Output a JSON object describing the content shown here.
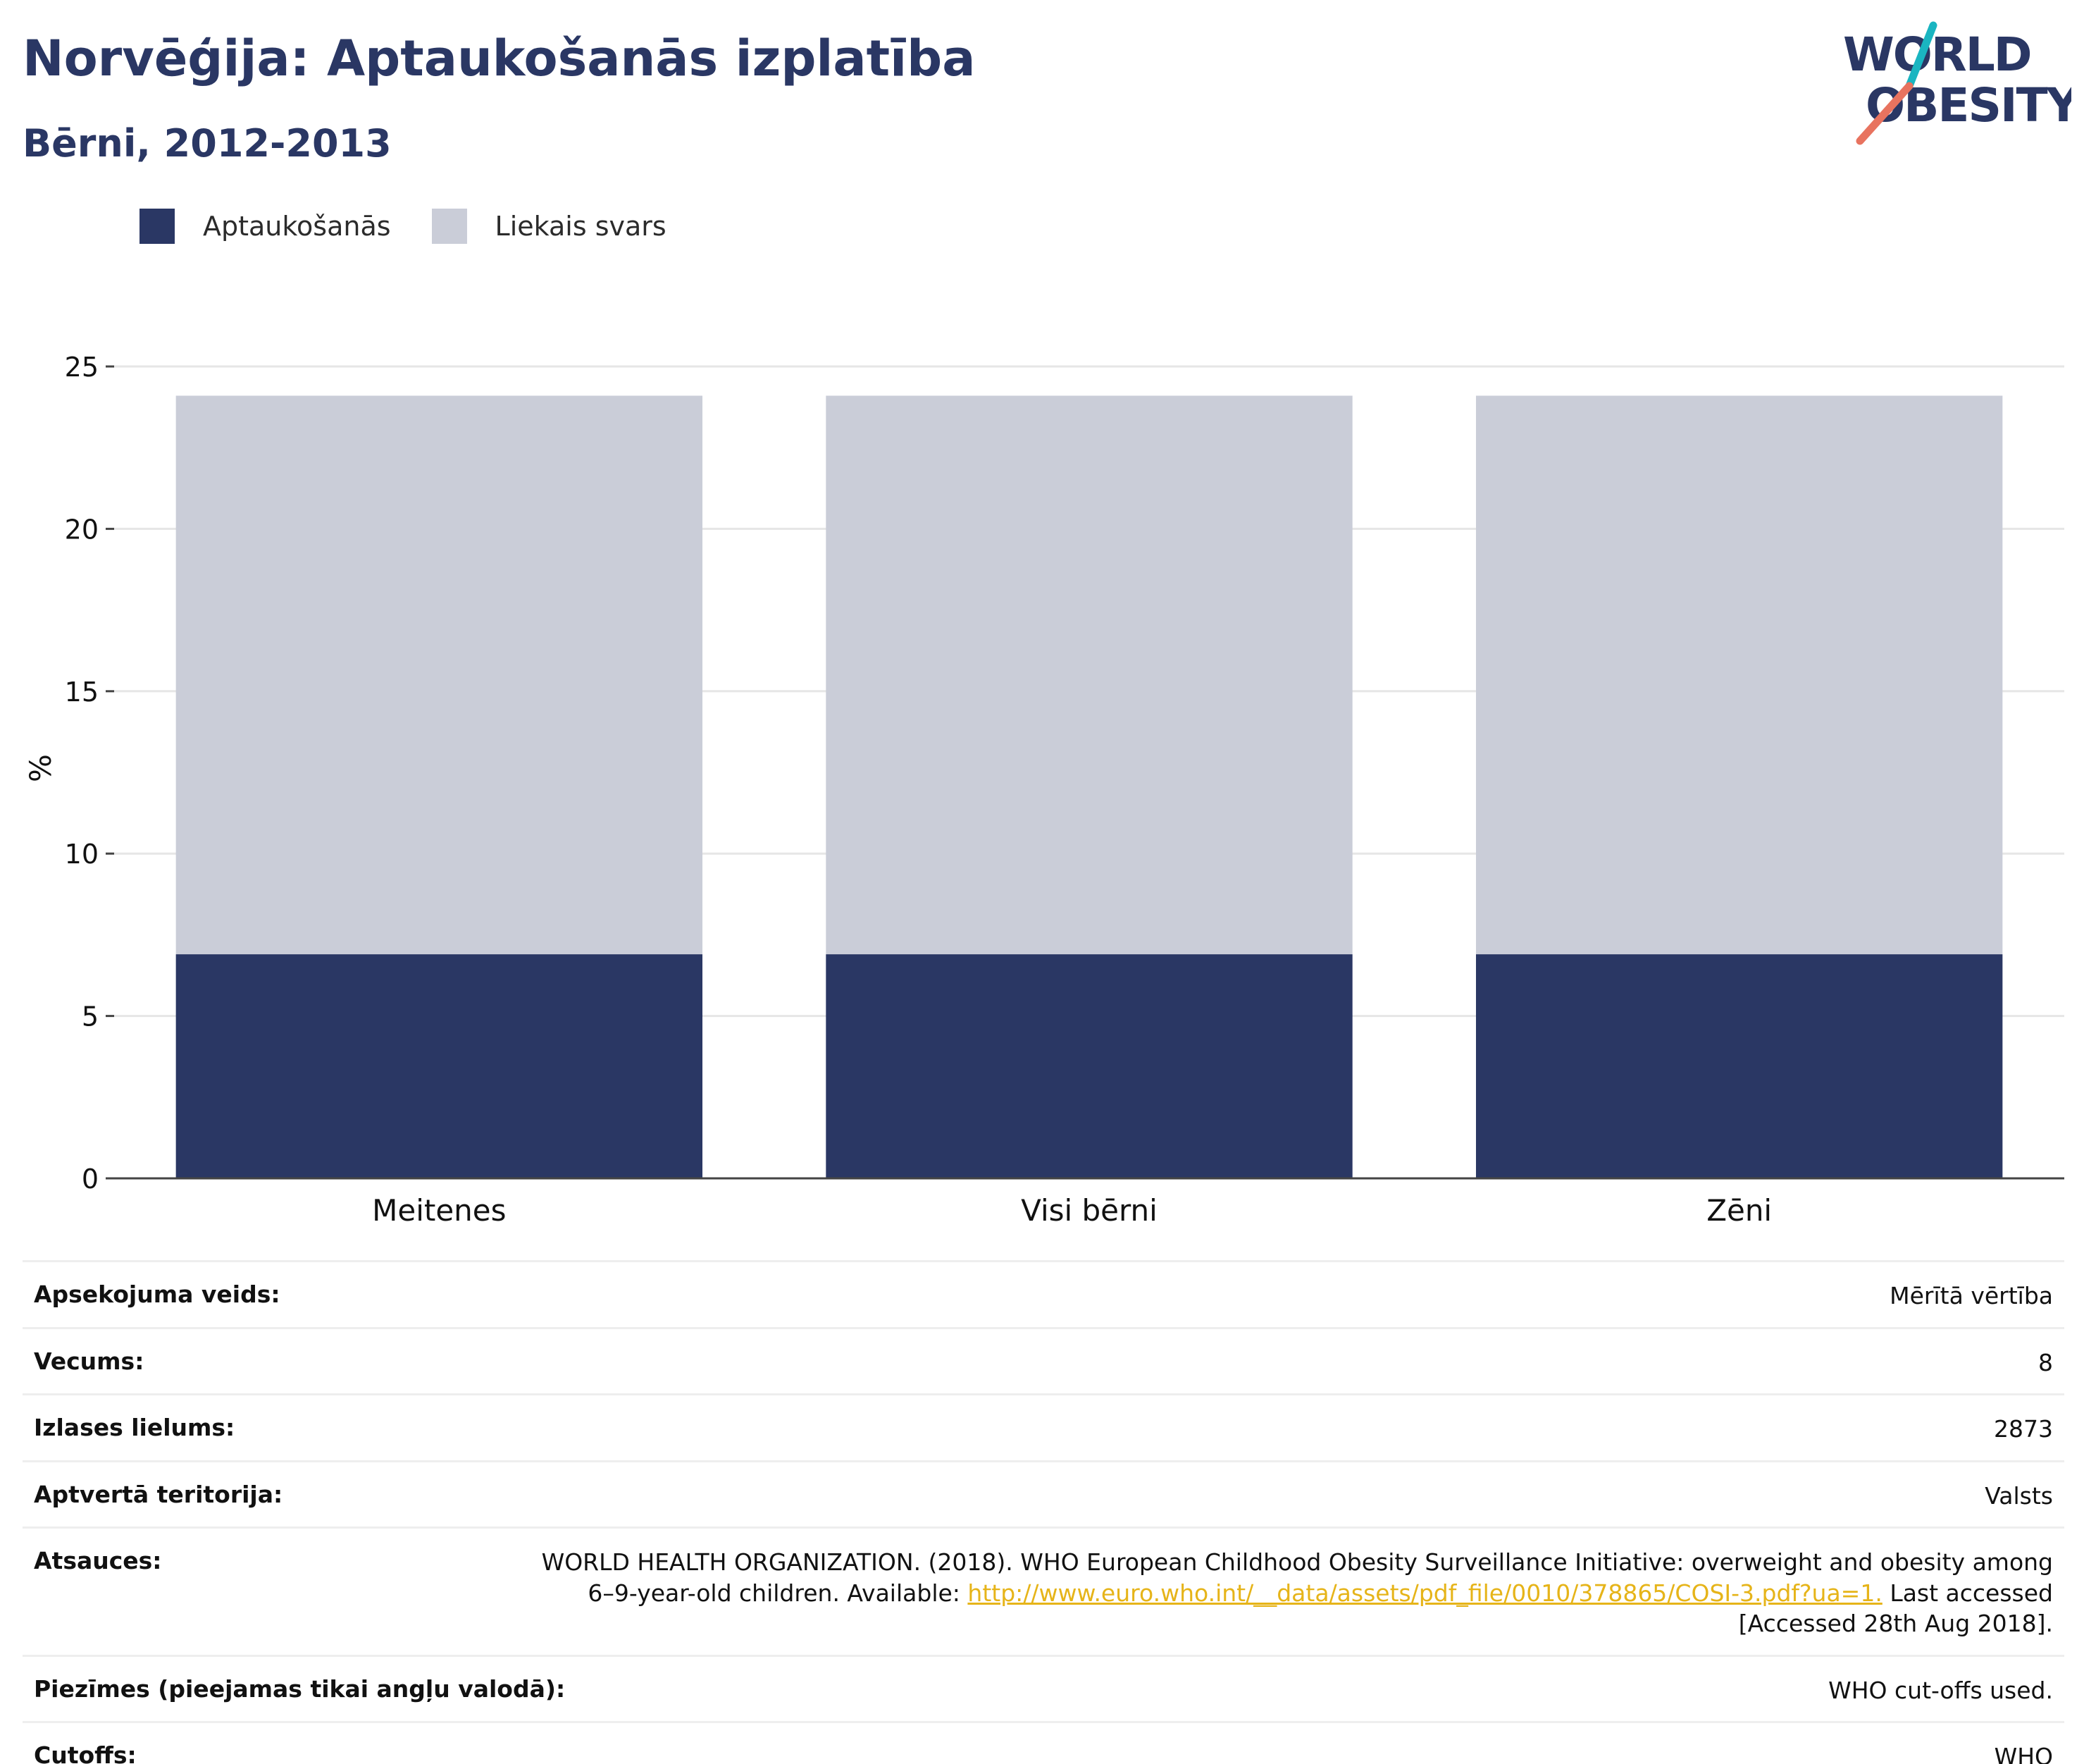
{
  "header": {
    "title": "Norvēģija: Aptaukošanās izplatība",
    "subtitle": "Bērni, 2012-2013"
  },
  "logo": {
    "line1": "WORLD",
    "line2": "OBESITY",
    "colors": {
      "navy": "#2a3764",
      "teal": "#1ab5c1",
      "coral": "#e8735f"
    }
  },
  "legend": {
    "items": [
      {
        "label": "Aptaukošanās",
        "color": "#2a3764"
      },
      {
        "label": "Liekais svars",
        "color": "#cacdd8"
      }
    ]
  },
  "chart_data": {
    "type": "bar",
    "stacked": true,
    "categories": [
      "Meitenes",
      "Visi bērni",
      "Zēni"
    ],
    "series": [
      {
        "name": "Aptaukošanās",
        "values": [
          6.9,
          6.9,
          6.9
        ],
        "color": "#2a3764"
      },
      {
        "name": "Liekais svars",
        "values": [
          17.2,
          17.2,
          17.2
        ],
        "color": "#cacdd8"
      }
    ],
    "ylabel": "%",
    "ylim": [
      0,
      25
    ],
    "yticks": [
      0,
      5,
      10,
      15,
      20,
      25
    ],
    "grid": true,
    "legend": "top-left"
  },
  "info": {
    "rows": [
      {
        "label": "Apsekojuma veids:",
        "value": "Mērītā vērtība"
      },
      {
        "label": "Vecums:",
        "value": "8"
      },
      {
        "label": "Izlases lielums:",
        "value": "2873"
      },
      {
        "label": "Aptvertā teritorija:",
        "value": "Valsts"
      }
    ],
    "refs": {
      "label": "Atsauces:",
      "line1": "WORLD HEALTH ORGANIZATION. (2018). WHO European Childhood Obesity Surveillance Initiative: overweight and obesity among",
      "line2_prefix": "6–9-year-old children. Available: ",
      "link": "http://www.euro.who.int/__data/assets/pdf_file/0010/378865/COSI-3.pdf?ua=1.",
      "line2_suffix": " Last accessed",
      "line3": "[Accessed 28th Aug 2018]."
    },
    "notes": {
      "label": "Piezīmes (pieejamas tikai angļu valodā):",
      "value": "WHO cut-offs used."
    },
    "cutoffs": {
      "label": "Cutoffs:",
      "value": "WHO"
    }
  }
}
